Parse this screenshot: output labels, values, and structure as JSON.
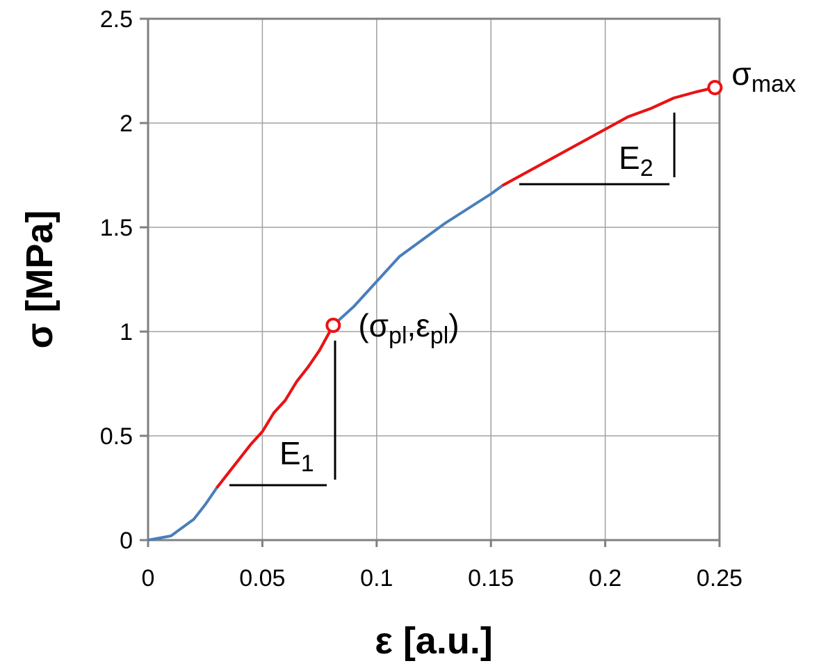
{
  "chart_data": {
    "type": "line",
    "xlabel": "ε [a.u.]",
    "ylabel": "σ [MPa]",
    "x": [
      0,
      0.01,
      0.02,
      0.025,
      0.03,
      0.035,
      0.04,
      0.045,
      0.05,
      0.055,
      0.06,
      0.065,
      0.07,
      0.075,
      0.081,
      0.09,
      0.1,
      0.11,
      0.12,
      0.13,
      0.14,
      0.15,
      0.155,
      0.16,
      0.17,
      0.18,
      0.19,
      0.2,
      0.21,
      0.22,
      0.23,
      0.24,
      0.248
    ],
    "series": [
      {
        "color": "#4a7ebb",
        "values": [
          0,
          0.02,
          0.1,
          0.17,
          0.25,
          0.32,
          0.39,
          0.46,
          0.52,
          0.61,
          0.67,
          0.76,
          0.83,
          0.91,
          1.03,
          1.12,
          1.24,
          1.36,
          1.44,
          1.52,
          1.59,
          1.66,
          1.7,
          1.73,
          1.79,
          1.85,
          1.91,
          1.97,
          2.03,
          2.07,
          2.12,
          2.15,
          2.17
        ]
      },
      {
        "color": "#ee1111",
        "values": [
          null,
          null,
          null,
          null,
          0.25,
          0.32,
          0.39,
          0.46,
          0.52,
          0.61,
          0.67,
          0.76,
          0.83,
          0.91,
          1.03,
          null,
          null,
          null,
          null,
          null,
          null,
          null,
          1.7,
          1.73,
          1.79,
          1.85,
          1.91,
          1.97,
          2.03,
          2.07,
          2.12,
          2.15,
          2.17
        ]
      }
    ],
    "points": [
      {
        "x": 0.081,
        "y": 1.03,
        "color": "#ee1111",
        "parts": [
          "(σ",
          "pl",
          ",ε",
          "pl",
          ")"
        ]
      },
      {
        "x": 0.248,
        "y": 2.17,
        "color": "#ee1111",
        "parts": [
          "σ",
          "max"
        ]
      }
    ],
    "slope_labels": [
      [
        "E",
        "1"
      ],
      [
        "E",
        "2"
      ]
    ],
    "xlim": [
      0,
      0.25
    ],
    "ylim": [
      0,
      2.5
    ],
    "xticks": [
      0,
      0.05,
      0.1,
      0.15,
      0.2,
      0.25
    ],
    "yticks": [
      0,
      0.5,
      1,
      1.5,
      2,
      2.5
    ],
    "grid": true
  }
}
